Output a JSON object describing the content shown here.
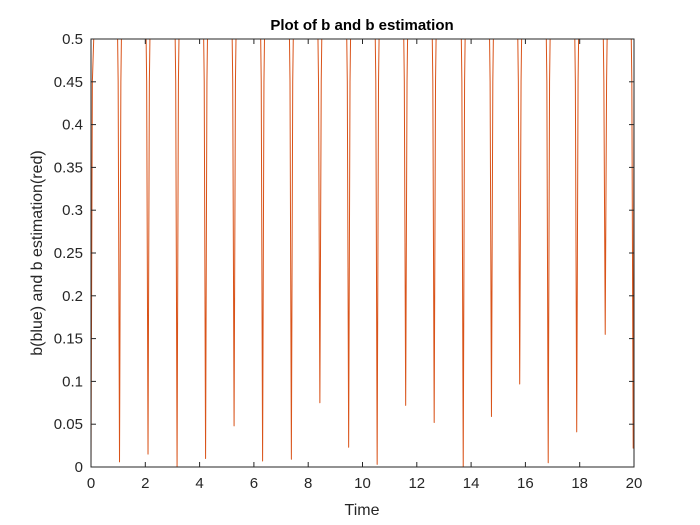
{
  "chart_data": {
    "type": "line",
    "title": "Plot of b and b estimation",
    "xlabel": "Time",
    "ylabel": "b(blue) and b estimation(red)",
    "xlim": [
      0,
      20
    ],
    "ylim": [
      0,
      0.5
    ],
    "xticks": [
      0,
      2,
      4,
      6,
      8,
      10,
      12,
      14,
      16,
      18,
      20
    ],
    "xtick_labels": [
      "0",
      "2",
      "4",
      "6",
      "8",
      "10",
      "12",
      "14",
      "16",
      "18",
      "20"
    ],
    "yticks": [
      0,
      0.05,
      0.1,
      0.15,
      0.2,
      0.25,
      0.3,
      0.35,
      0.4,
      0.45,
      0.5
    ],
    "ytick_labels": [
      "0",
      "0.05",
      "0.1",
      "0.15",
      "0.2",
      "0.25",
      "0.3",
      "0.35",
      "0.4",
      "0.45",
      "0.5"
    ],
    "grid": false,
    "legend": "none",
    "series": [
      {
        "color": "#0072BD",
        "x": [
          0,
          20
        ],
        "y": [
          0.5,
          0.5
        ]
      },
      {
        "color": "#D95319",
        "x": [
          0,
          0.05,
          0.1,
          0.12,
          0.98,
          1.0,
          1.05,
          1.1,
          1.12,
          2.03,
          2.05,
          2.1,
          2.15,
          2.17,
          3.1,
          3.12,
          3.17,
          3.22,
          3.24,
          4.15,
          4.17,
          4.22,
          4.27,
          4.29,
          5.2,
          5.22,
          5.27,
          5.32,
          5.34,
          6.25,
          6.27,
          6.32,
          6.37,
          6.39,
          7.31,
          7.33,
          7.38,
          7.43,
          7.45,
          8.36,
          8.38,
          8.43,
          8.48,
          8.5,
          9.42,
          9.44,
          9.49,
          9.54,
          9.56,
          10.47,
          10.49,
          10.54,
          10.59,
          10.61,
          11.52,
          11.54,
          11.59,
          11.64,
          11.66,
          12.57,
          12.59,
          12.64,
          12.69,
          12.71,
          13.64,
          13.66,
          13.71,
          13.76,
          13.78,
          14.68,
          14.7,
          14.75,
          14.8,
          14.82,
          15.72,
          15.74,
          15.79,
          15.84,
          15.86,
          16.77,
          16.79,
          16.84,
          16.89,
          16.91,
          17.82,
          17.84,
          17.89,
          17.94,
          17.96,
          18.87,
          18.89,
          18.94,
          18.99,
          19.01,
          19.9,
          19.92,
          19.97,
          20
        ],
        "y": [
          0.0,
          0.45,
          0.5,
          0.5,
          0.5,
          0.45,
          0.006,
          0.45,
          0.5,
          0.5,
          0.45,
          0.015,
          0.45,
          0.5,
          0.5,
          0.45,
          0.0,
          0.45,
          0.5,
          0.5,
          0.45,
          0.01,
          0.45,
          0.5,
          0.5,
          0.45,
          0.048,
          0.45,
          0.5,
          0.5,
          0.45,
          0.007,
          0.45,
          0.5,
          0.5,
          0.45,
          0.009,
          0.45,
          0.5,
          0.5,
          0.45,
          0.075,
          0.45,
          0.5,
          0.5,
          0.45,
          0.023,
          0.45,
          0.5,
          0.5,
          0.45,
          0.003,
          0.45,
          0.5,
          0.5,
          0.45,
          0.072,
          0.45,
          0.5,
          0.5,
          0.45,
          0.052,
          0.45,
          0.5,
          0.5,
          0.45,
          0.0,
          0.45,
          0.5,
          0.5,
          0.45,
          0.059,
          0.45,
          0.5,
          0.5,
          0.45,
          0.097,
          0.45,
          0.5,
          0.5,
          0.45,
          0.005,
          0.45,
          0.5,
          0.5,
          0.45,
          0.041,
          0.45,
          0.5,
          0.5,
          0.45,
          0.155,
          0.45,
          0.5,
          0.5,
          0.45,
          0.022,
          0.45
        ]
      }
    ]
  }
}
